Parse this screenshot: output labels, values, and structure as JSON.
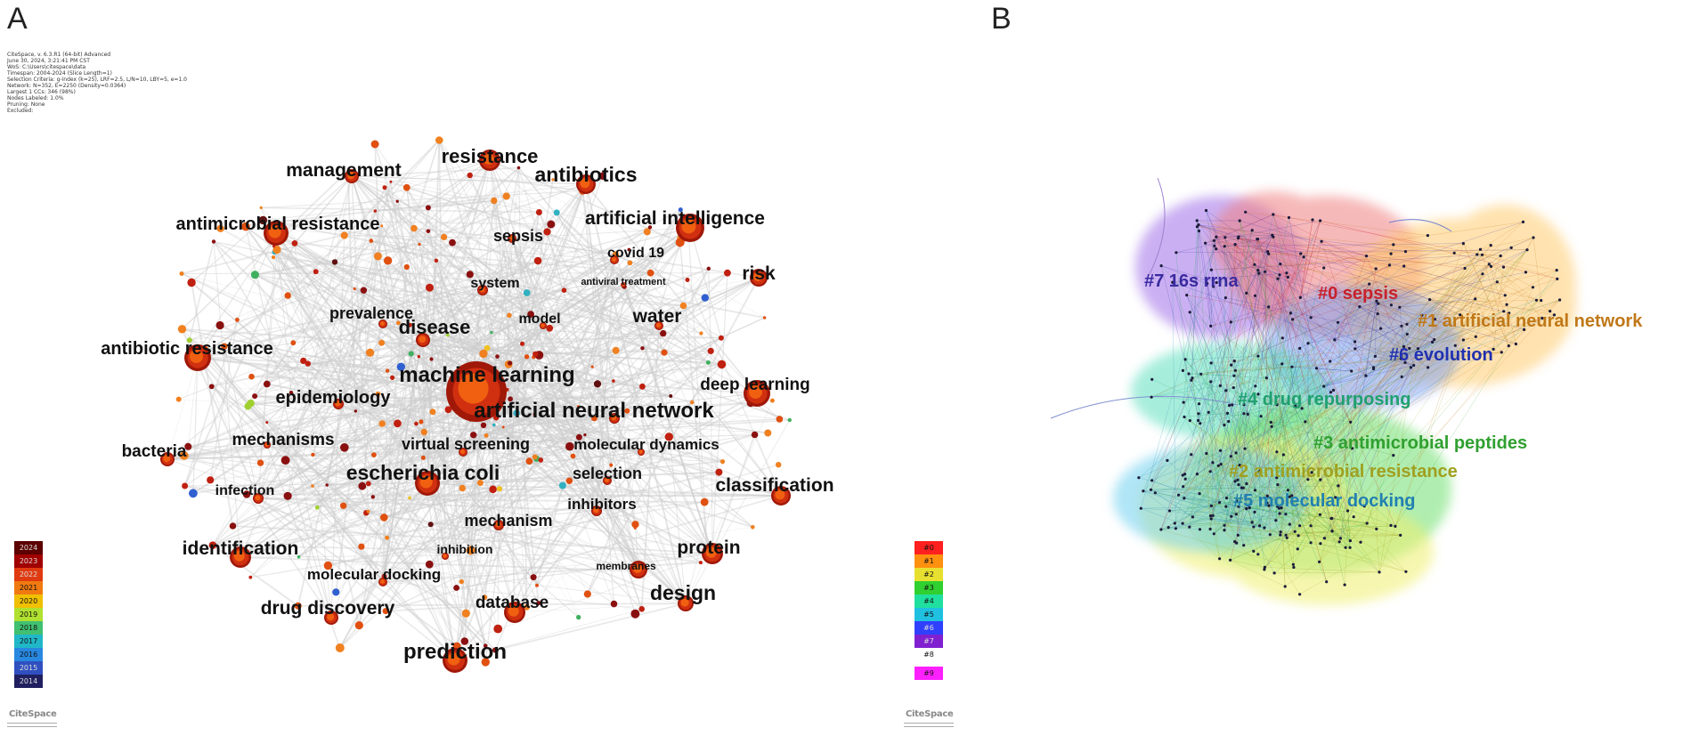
{
  "panels": {
    "a": {
      "letter": "A"
    },
    "b": {
      "letter": "B"
    }
  },
  "meta_lines": [
    "CiteSpace, v. 6.3.R1 (64-bit) Advanced",
    "June 30, 2024, 3:21:41 PM CST",
    "WoS: C:\\Users\\citespace\\data",
    "Timespan: 2004-2024 (Slice Length=1)",
    "Selection Criteria: g-index (k=25), LRF=2.5, L/N=10, LBY=5, e=1.0",
    "Network: N=352, E=2250 (Density=0.0364)",
    "Largest 1 CCs: 346 (98%)",
    "Nodes Labeled: 1.0%",
    "Pruning: None",
    "Excluded:"
  ],
  "keywords": [
    {
      "label": "resistance",
      "size": 22
    },
    {
      "label": "management",
      "size": 21
    },
    {
      "label": "antibiotics",
      "size": 23
    },
    {
      "label": "artificial intelligence",
      "size": 21
    },
    {
      "label": "antimicrobial resistance",
      "size": 20
    },
    {
      "label": "sepsis",
      "size": 18
    },
    {
      "label": "covid 19",
      "size": 16
    },
    {
      "label": "system",
      "size": 16
    },
    {
      "label": "antiviral treatment",
      "size": 11
    },
    {
      "label": "risk",
      "size": 21
    },
    {
      "label": "prevalence",
      "size": 18
    },
    {
      "label": "model",
      "size": 16
    },
    {
      "label": "water",
      "size": 21
    },
    {
      "label": "disease",
      "size": 22
    },
    {
      "label": "antibiotic resistance",
      "size": 20
    },
    {
      "label": "machine learning",
      "size": 24
    },
    {
      "label": "deep learning",
      "size": 19
    },
    {
      "label": "epidemiology",
      "size": 20
    },
    {
      "label": "artificial neural network",
      "size": 24
    },
    {
      "label": "mechanisms",
      "size": 19
    },
    {
      "label": "virtual screening",
      "size": 18
    },
    {
      "label": "molecular dynamics",
      "size": 17
    },
    {
      "label": "bacteria",
      "size": 19
    },
    {
      "label": "escherichia coli",
      "size": 23
    },
    {
      "label": "infection",
      "size": 16
    },
    {
      "label": "selection",
      "size": 18
    },
    {
      "label": "classification",
      "size": 21
    },
    {
      "label": "inhibitors",
      "size": 17
    },
    {
      "label": "mechanism",
      "size": 18
    },
    {
      "label": "identification",
      "size": 21
    },
    {
      "label": "protein",
      "size": 21
    },
    {
      "label": "inhibition",
      "size": 14
    },
    {
      "label": "membranes",
      "size": 12
    },
    {
      "label": "molecular docking",
      "size": 17
    },
    {
      "label": "design",
      "size": 23
    },
    {
      "label": "drug discovery",
      "size": 21
    },
    {
      "label": "database",
      "size": 19
    },
    {
      "label": "prediction",
      "size": 24
    }
  ],
  "year_legend": [
    "2024",
    "2023",
    "2022",
    "2021",
    "2020",
    "2019",
    "2018",
    "2017",
    "2016",
    "2015",
    "2014"
  ],
  "year_colors": [
    "#5c0000",
    "#a00000",
    "#e03a10",
    "#f07a10",
    "#f0c000",
    "#b0e030",
    "#40c070",
    "#20b8c8",
    "#2888e0",
    "#3050c0",
    "#202060"
  ],
  "cluster_legend": [
    "#0",
    "#1",
    "#2",
    "#3",
    "#4",
    "#5",
    "#6",
    "#7",
    "#8",
    "#9"
  ],
  "cluster_legend_colors": [
    "#ff2020",
    "#ff9010",
    "#e8e030",
    "#30d030",
    "#20e0a0",
    "#20c0e0",
    "#3040ff",
    "#8020d0",
    "#ffffff",
    "#ff20ff"
  ],
  "clusters": [
    {
      "label": "#7 16s rrna",
      "color": "#3a2aa0",
      "fill": "#a070e8"
    },
    {
      "label": "#0 sepsis",
      "color": "#c8202a",
      "fill": "#f08080"
    },
    {
      "label": "#1 artificial neural network",
      "color": "#c07818",
      "fill": "#ffcc70"
    },
    {
      "label": "#6 evolution",
      "color": "#2030b0",
      "fill": "#80a0f0"
    },
    {
      "label": "#4 drug repurposing",
      "color": "#20a070",
      "fill": "#60e0c0"
    },
    {
      "label": "#3 antimicrobial peptides",
      "color": "#30a030",
      "fill": "#70e070"
    },
    {
      "label": "#2 antimicrobial resistance",
      "color": "#a0a020",
      "fill": "#f0f070"
    },
    {
      "label": "#5 molecular docking",
      "color": "#2080b0",
      "fill": "#70d0f0"
    }
  ],
  "logo_text": "CiteSpace",
  "colors": {
    "node_inner": "#f06010",
    "node_outer": "#a01808",
    "edge": "#cccccc"
  }
}
